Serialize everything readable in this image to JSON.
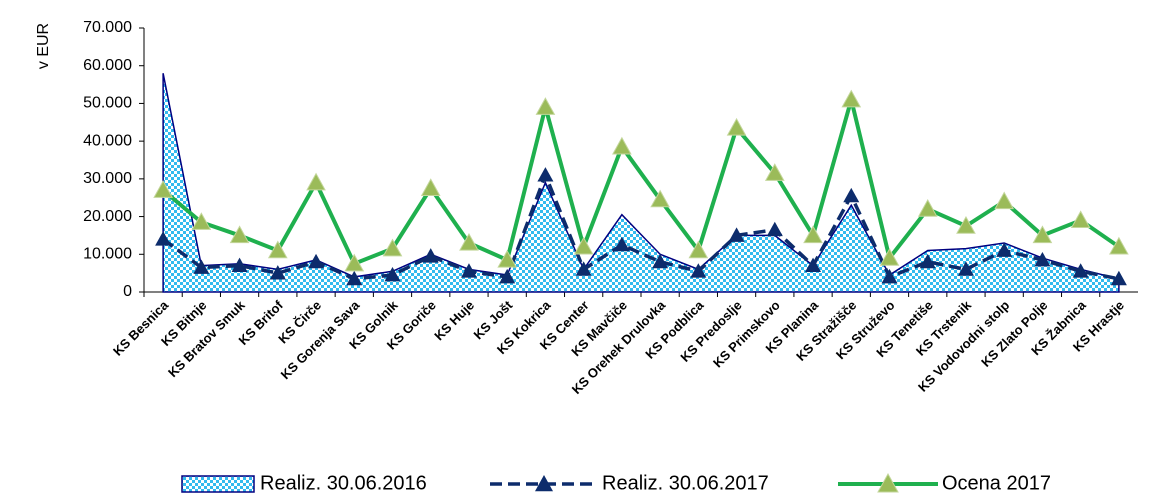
{
  "chart_data": {
    "type": "line",
    "y_axis_label": "v EUR",
    "categories": [
      "KS Besnica",
      "KS Bitnje",
      "KS Bratov Smuk",
      "KS Britof",
      "KS Čirče",
      "KS Gorenja Sava",
      "KS Golnik",
      "KS Goriče",
      "KS Huje",
      "KS Jošt",
      "KS Kokrica",
      "KS Center",
      "KS Mavčiče",
      "KS Orehek Drulovka",
      "KS Podblica",
      "KS Predoslje",
      "KS Primskovo",
      "KS Planina",
      "KS Stražišče",
      "KS Struževo",
      "KS Tenetiše",
      "KS Trstenik",
      "KS Vodovodni stolp",
      "KS Zlato Polje",
      "KS Žabnica",
      "KS Hrastje"
    ],
    "series": [
      {
        "name": "Realiz. 30.06.2016",
        "kind": "area",
        "color": "#33bbee",
        "values": [
          58000,
          7000,
          7500,
          6000,
          8500,
          4000,
          5500,
          10000,
          6000,
          4500,
          29000,
          6000,
          20500,
          10000,
          6000,
          15000,
          15000,
          7000,
          23000,
          4500,
          11000,
          11500,
          13000,
          9000,
          6000,
          3500
        ]
      },
      {
        "name": "Realiz. 30.06.2017",
        "kind": "dashed",
        "color": "#0d2c6c",
        "values": [
          14000,
          6500,
          7000,
          5000,
          8000,
          3500,
          4500,
          9500,
          5500,
          4000,
          31000,
          6000,
          12500,
          8000,
          5500,
          15000,
          16500,
          7000,
          25500,
          4000,
          8000,
          6000,
          11000,
          8500,
          5500,
          3500
        ]
      },
      {
        "name": "Ocena 2017",
        "kind": "solid",
        "color": "#1fb04e",
        "values": [
          27000,
          18500,
          15000,
          11000,
          29000,
          7500,
          11500,
          27500,
          13000,
          8500,
          49000,
          12000,
          38500,
          24500,
          11000,
          43500,
          31500,
          15000,
          51000,
          9000,
          22000,
          17500,
          24000,
          15000,
          19000,
          12000
        ]
      }
    ],
    "ylim": [
      0,
      70000
    ],
    "yticks": [
      0,
      {
        "value": 10000,
        "label": "10.000"
      },
      {
        "value": 20000,
        "label": "20.000"
      },
      {
        "value": 30000,
        "label": "30.000"
      },
      {
        "value": 40000,
        "label": "40.000"
      },
      {
        "value": 50000,
        "label": "50.000"
      },
      {
        "value": 60000,
        "label": "60.000"
      },
      {
        "value": 70000,
        "label": "70.000"
      }
    ]
  }
}
